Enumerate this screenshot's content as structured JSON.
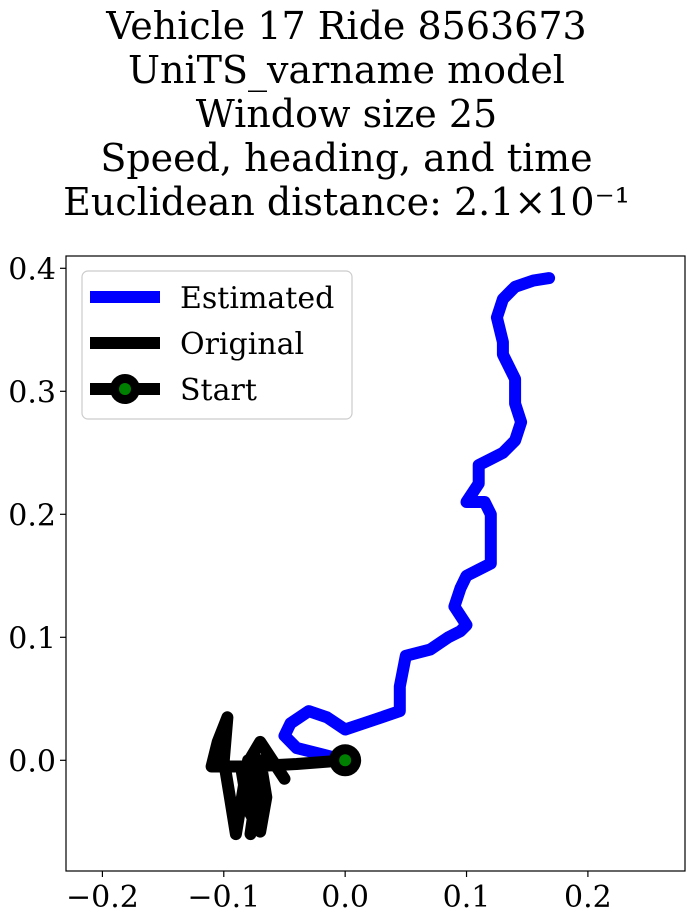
{
  "chart_data": {
    "type": "line",
    "title_lines": [
      "Vehicle 17 Ride 8563673",
      "UniTS_varname model",
      "Window size 25",
      "Speed, heading, and time",
      "Euclidean distance: 2.1×10⁻¹"
    ],
    "xlabel": "",
    "ylabel": "",
    "xlim": [
      -0.23,
      0.28
    ],
    "ylim": [
      -0.09,
      0.41
    ],
    "xticks": [
      -0.2,
      -0.1,
      0.0,
      0.1,
      0.2
    ],
    "xtick_labels": [
      "−0.2",
      "−0.1",
      "0.0",
      "0.1",
      "0.2"
    ],
    "yticks": [
      0.0,
      0.1,
      0.2,
      0.3,
      0.4
    ],
    "ytick_labels": [
      "0.0",
      "0.1",
      "0.2",
      "0.3",
      "0.4"
    ],
    "grid": false,
    "legend_position": "top-left",
    "legend": [
      "Estimated",
      "Original",
      "Start"
    ],
    "series": [
      {
        "name": "Estimated",
        "color": "#0000ff",
        "points": [
          [
            0.0,
            0.0
          ],
          [
            -0.02,
            0.005
          ],
          [
            -0.04,
            0.01
          ],
          [
            -0.05,
            0.02
          ],
          [
            -0.045,
            0.03
          ],
          [
            -0.03,
            0.04
          ],
          [
            -0.015,
            0.035
          ],
          [
            0.0,
            0.025
          ],
          [
            0.015,
            0.03
          ],
          [
            0.03,
            0.035
          ],
          [
            0.045,
            0.04
          ],
          [
            0.045,
            0.06
          ],
          [
            0.05,
            0.085
          ],
          [
            0.07,
            0.09
          ],
          [
            0.085,
            0.1
          ],
          [
            0.095,
            0.105
          ],
          [
            0.1,
            0.11
          ],
          [
            0.09,
            0.125
          ],
          [
            0.095,
            0.14
          ],
          [
            0.1,
            0.15
          ],
          [
            0.11,
            0.155
          ],
          [
            0.12,
            0.16
          ],
          [
            0.12,
            0.18
          ],
          [
            0.12,
            0.2
          ],
          [
            0.115,
            0.21
          ],
          [
            0.1,
            0.21
          ],
          [
            0.11,
            0.225
          ],
          [
            0.11,
            0.24
          ],
          [
            0.12,
            0.245
          ],
          [
            0.13,
            0.25
          ],
          [
            0.14,
            0.26
          ],
          [
            0.145,
            0.275
          ],
          [
            0.14,
            0.29
          ],
          [
            0.14,
            0.31
          ],
          [
            0.13,
            0.33
          ],
          [
            0.13,
            0.34
          ],
          [
            0.125,
            0.36
          ],
          [
            0.13,
            0.375
          ],
          [
            0.14,
            0.385
          ],
          [
            0.155,
            0.39
          ],
          [
            0.168,
            0.392
          ]
        ]
      },
      {
        "name": "Original",
        "color": "#000000",
        "points": [
          [
            0.0,
            0.0
          ],
          [
            -0.04,
            -0.003
          ],
          [
            -0.08,
            -0.005
          ],
          [
            -0.11,
            -0.005
          ],
          [
            -0.105,
            0.015
          ],
          [
            -0.097,
            0.035
          ],
          [
            -0.1,
            0.0
          ],
          [
            -0.095,
            -0.03
          ],
          [
            -0.09,
            -0.06
          ],
          [
            -0.085,
            -0.03
          ],
          [
            -0.08,
            0.0
          ],
          [
            -0.075,
            -0.04
          ],
          [
            -0.078,
            -0.06
          ],
          [
            -0.072,
            -0.035
          ],
          [
            -0.07,
            0.0
          ],
          [
            -0.065,
            -0.03
          ],
          [
            -0.07,
            -0.058
          ],
          [
            -0.08,
            -0.04
          ],
          [
            -0.085,
            -0.01
          ],
          [
            -0.07,
            0.015
          ],
          [
            -0.06,
            0.0
          ],
          [
            -0.05,
            -0.015
          ]
        ]
      }
    ],
    "start": {
      "name": "Start",
      "x": 0.0,
      "y": 0.0,
      "outer_color": "#000000",
      "inner_color": "#008000"
    }
  }
}
